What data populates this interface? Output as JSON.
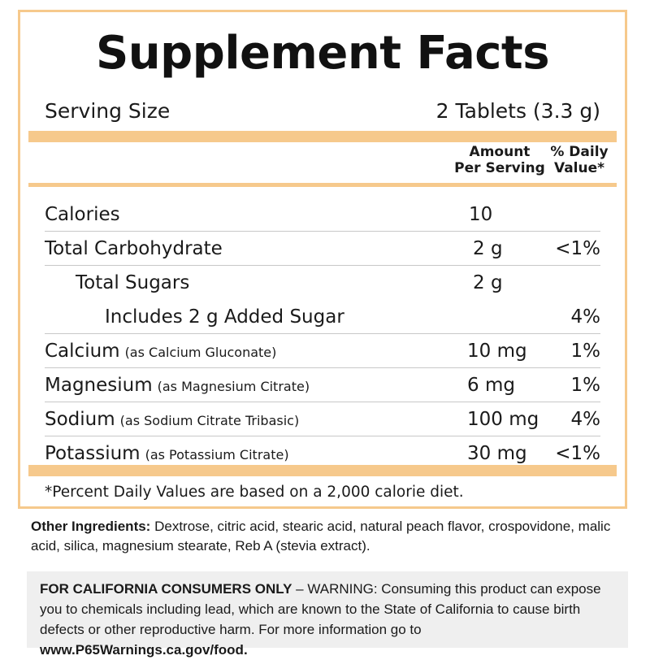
{
  "label": {
    "title": "Supplement Facts",
    "serving_size_label": "Serving Size",
    "serving_size_value": "2 Tablets (3.3 g)",
    "column_amount": "Amount\nPer Serving",
    "column_dv": "% Daily\nValue*",
    "rows": [
      {
        "name": "Calories",
        "sub": "",
        "amount": "10",
        "dv": ""
      },
      {
        "name": "Total Carbohydrate",
        "sub": "",
        "amount": "2 g",
        "dv": "<1%"
      },
      {
        "name": "Total Sugars",
        "sub": "",
        "amount": "2 g",
        "dv": ""
      },
      {
        "name": "Includes 2 g Added Sugar",
        "sub": "",
        "amount": "",
        "dv": "4%"
      },
      {
        "name": "Calcium",
        "sub": "(as Calcium Gluconate)",
        "amount": "10 mg",
        "dv": "1%"
      },
      {
        "name": "Magnesium",
        "sub": "(as Magnesium Citrate)",
        "amount": "6 mg",
        "dv": "1%"
      },
      {
        "name": "Sodium",
        "sub": "(as Sodium Citrate Tribasic)",
        "amount": "100 mg",
        "dv": "4%"
      },
      {
        "name": "Potassium",
        "sub": "(as Potassium Citrate)",
        "amount": "30 mg",
        "dv": "<1%"
      }
    ],
    "footnote": "*Percent Daily Values are based on a 2,000 calorie diet."
  },
  "other_ingredients": {
    "label": "Other Ingredients:",
    "text": " Dextrose, citric acid, stearic acid, natural peach flavor, crospovidone, malic acid, silica, magnesium stearate, Reb A (stevia extract)."
  },
  "warning": {
    "heading": "FOR CALIFORNIA CONSUMERS ONLY",
    "text": " – WARNING: Consuming this product can expose you to chemicals including lead, which are known to the State of California to cause birth defects or other reproductive harm. For more information go to ",
    "link": "www.P65Warnings.ca.gov/food."
  },
  "colors": {
    "accent": "#f6c98c",
    "warning_bg": "#efefef"
  }
}
